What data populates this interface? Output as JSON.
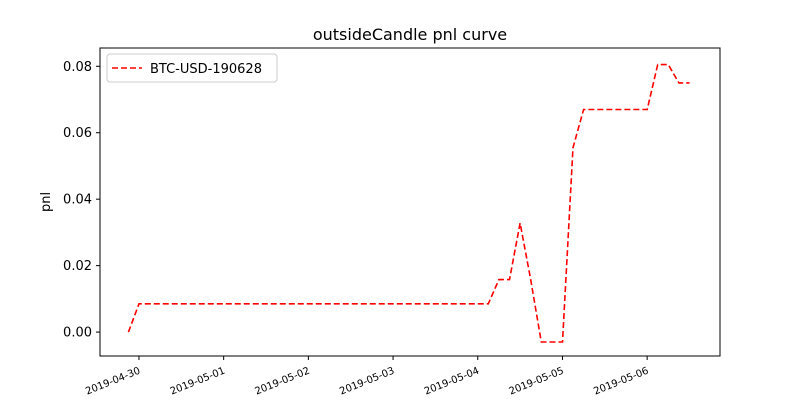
{
  "chart_data": {
    "type": "line",
    "title": "outsideCandle pnl curve",
    "xlabel": "",
    "ylabel": "pnl",
    "x_tick_labels": [
      "2019-04-30",
      "2019-05-01",
      "2019-05-02",
      "2019-05-03",
      "2019-05-04",
      "2019-05-05",
      "2019-05-06"
    ],
    "y_ticks": [
      0.0,
      0.02,
      0.04,
      0.06,
      0.08
    ],
    "y_tick_labels": [
      "0.00",
      "0.02",
      "0.04",
      "0.06",
      "0.08"
    ],
    "xlim_days": [
      -0.46,
      6.86
    ],
    "ylim": [
      -0.0072,
      0.0855
    ],
    "legend": {
      "position": "top-left",
      "entries": [
        "BTC-USD-190628"
      ]
    },
    "series": [
      {
        "name": "BTC-USD-190628",
        "color": "#ff0000",
        "line_style": "dashed",
        "x_days": [
          -0.125,
          0.0,
          4.0,
          4.125,
          4.25,
          4.375,
          4.5,
          4.625,
          4.75,
          4.875,
          5.0,
          5.125,
          5.25,
          5.375,
          5.5,
          5.625,
          5.75,
          5.875,
          6.0,
          6.125,
          6.25,
          6.375,
          6.5
        ],
        "values": [
          0.0,
          0.0085,
          0.0085,
          0.0085,
          0.0158,
          0.0158,
          0.0328,
          0.0158,
          -0.003,
          -0.003,
          -0.003,
          0.0555,
          0.067,
          0.067,
          0.067,
          0.067,
          0.067,
          0.067,
          0.067,
          0.0805,
          0.0805,
          0.075,
          0.075
        ]
      }
    ]
  }
}
